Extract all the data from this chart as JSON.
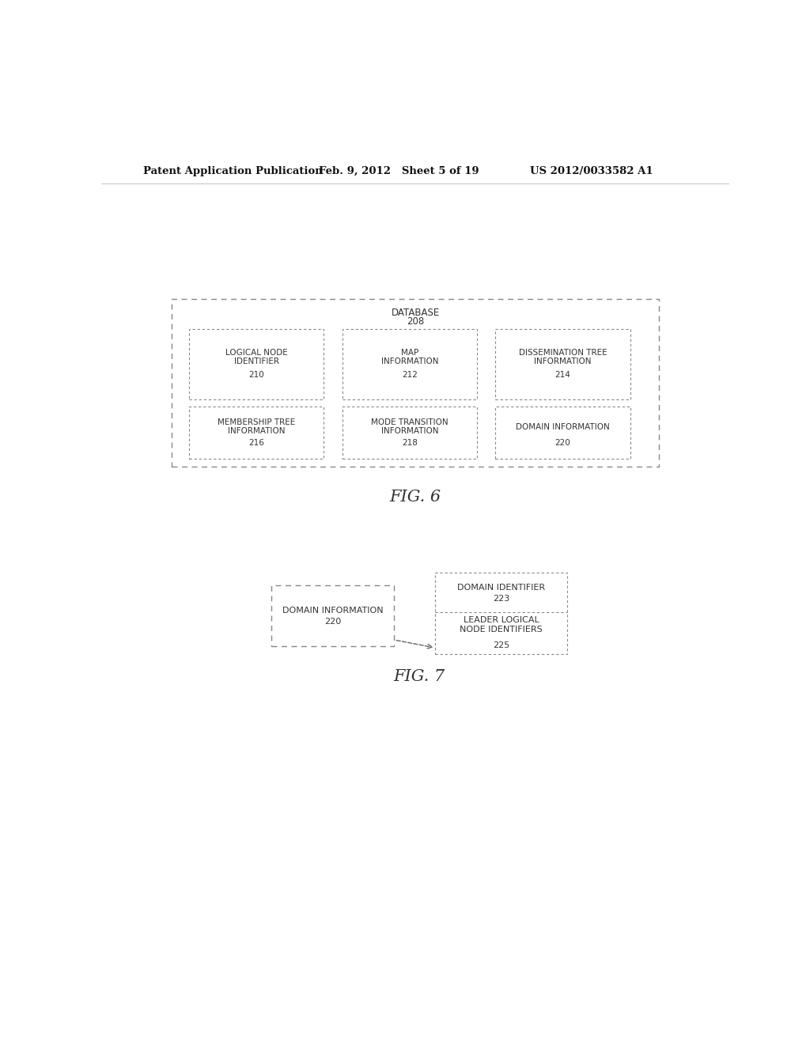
{
  "header_left": "Patent Application Publication",
  "header_mid": "Feb. 9, 2012   Sheet 5 of 19",
  "header_right": "US 2012/0033582 A1",
  "fig6_label": "FIG. 6",
  "fig7_label": "FIG. 7",
  "db_label": "DATABASE",
  "db_num": "208",
  "boxes_row1": [
    {
      "label": "LOGICAL NODE\nIDENTIFIER",
      "num": "210"
    },
    {
      "label": "MAP\nINFORMATION",
      "num": "212"
    },
    {
      "label": "DISSEMINATION TREE\nINFORMATION",
      "num": "214"
    }
  ],
  "boxes_row2": [
    {
      "label": "MEMBERSHIP TREE\nINFORMATION",
      "num": "216"
    },
    {
      "label": "MODE TRANSITION\nINFORMATION",
      "num": "218"
    },
    {
      "label": "DOMAIN INFORMATION",
      "num": "220"
    }
  ],
  "bg_color": "#ffffff",
  "text_color": "#333333"
}
